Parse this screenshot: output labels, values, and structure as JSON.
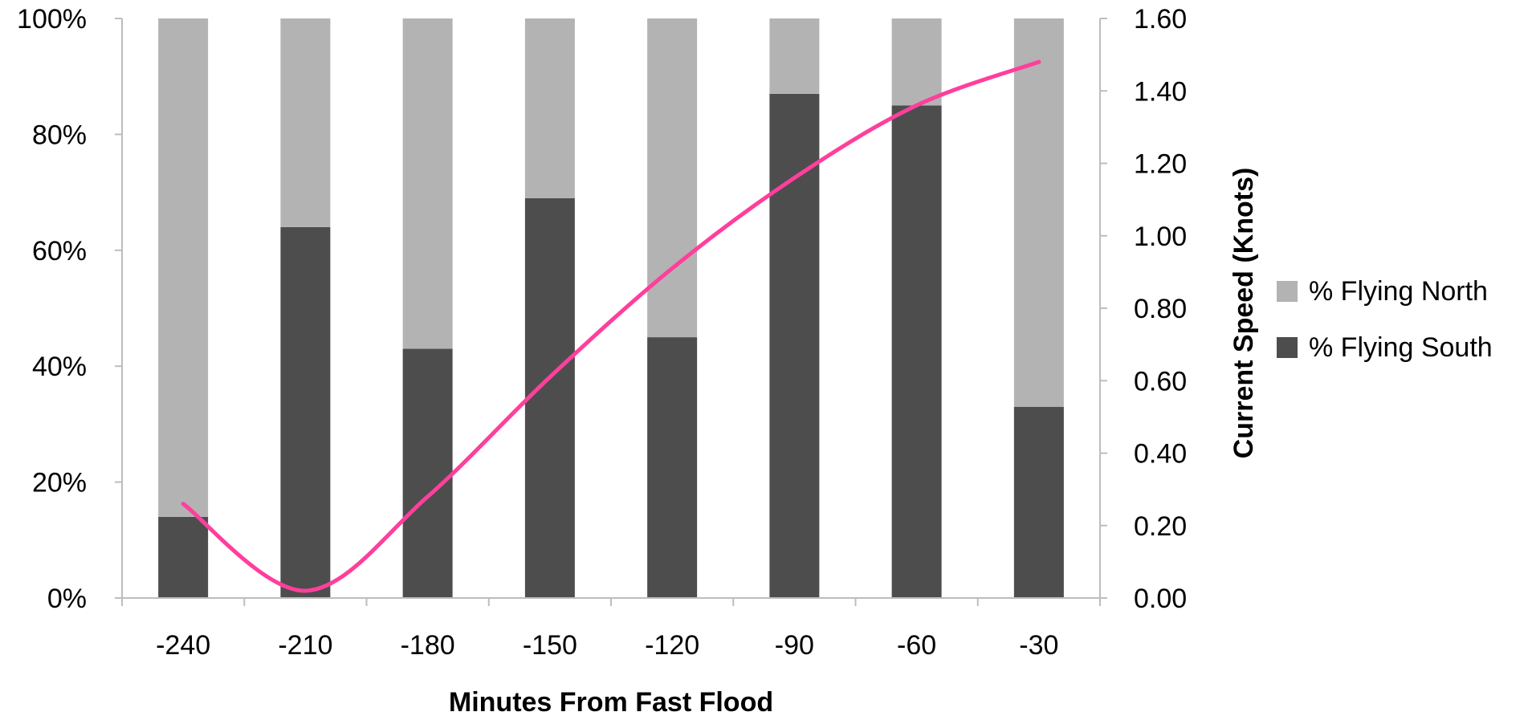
{
  "chart_data": {
    "type": "bar",
    "stacked": true,
    "categories": [
      "-240",
      "-210",
      "-180",
      "-150",
      "-120",
      "-90",
      "-60",
      "-30"
    ],
    "series": [
      {
        "name": "% Flying South",
        "color": "#4d4d4d",
        "values": [
          14,
          64,
          43,
          69,
          45,
          87,
          85,
          33
        ]
      },
      {
        "name": "% Flying North",
        "color": "#b3b3b3",
        "values": [
          86,
          36,
          57,
          31,
          55,
          13,
          15,
          67
        ]
      }
    ],
    "line_series": {
      "name": "Current Speed",
      "color": "#ff3f9c",
      "axis": "right",
      "values": [
        0.26,
        0.02,
        0.28,
        0.61,
        0.91,
        1.16,
        1.36,
        1.48
      ]
    },
    "xlabel": "Minutes From Fast Flood",
    "ylabel_left": "",
    "ylabel_right": "Current Speed (Knots)",
    "ylim_left": [
      0,
      100
    ],
    "ylim_right": [
      0,
      1.6
    ],
    "yticks_left": [
      "0%",
      "20%",
      "40%",
      "60%",
      "80%",
      "100%"
    ],
    "yticks_right": [
      "0.00",
      "0.20",
      "0.40",
      "0.60",
      "0.80",
      "1.00",
      "1.20",
      "1.40",
      "1.60"
    ],
    "grid": false,
    "legend_position": "right"
  }
}
